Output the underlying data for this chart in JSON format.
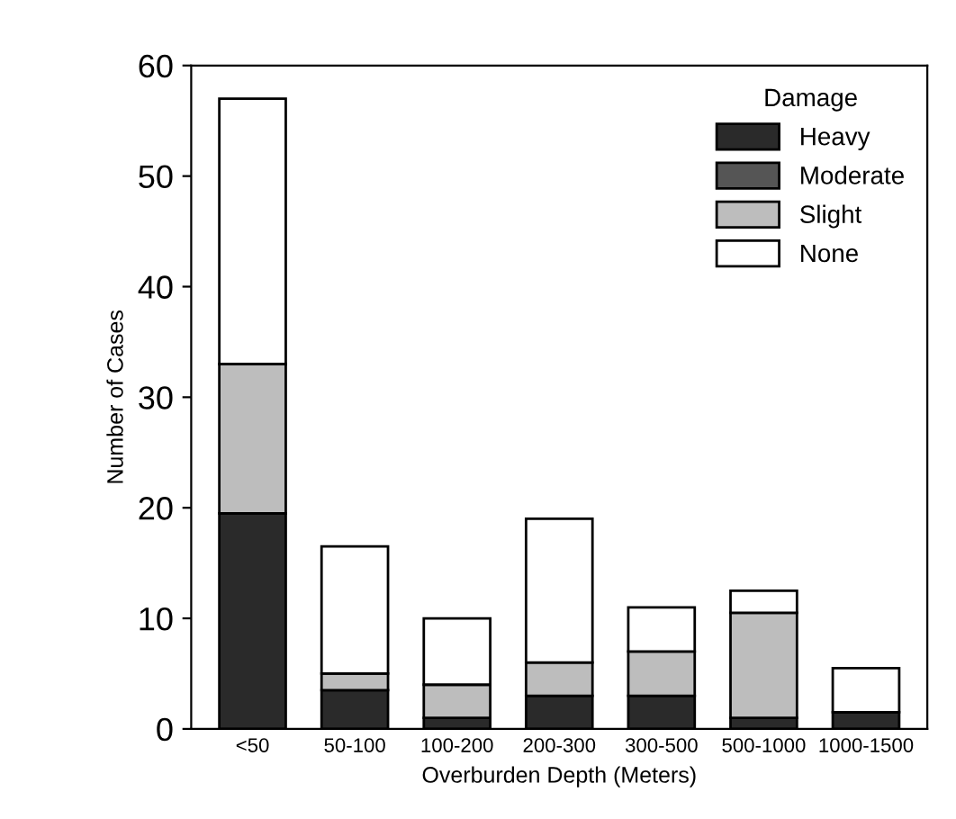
{
  "chart_data": {
    "type": "bar",
    "stacked": true,
    "xlabel": "Overburden Depth (Meters)",
    "ylabel": "Number of Cases",
    "legend_title": "Damage",
    "legend": "top right",
    "categories": [
      "<50",
      "50-100",
      "100-200",
      "200-300",
      "300-500",
      "500-1000",
      "1000-1500"
    ],
    "series": [
      {
        "name": "Heavy",
        "color": "#2a2a2a",
        "values": [
          19.5,
          3.5,
          1,
          3,
          3,
          1,
          1.5
        ]
      },
      {
        "name": "Moderate",
        "color": "#555555",
        "values": [
          0,
          0,
          0,
          0,
          0,
          0,
          0
        ]
      },
      {
        "name": "Slight",
        "color": "#bdbdbd",
        "values": [
          13.5,
          1.5,
          3,
          3,
          4,
          9.5,
          0
        ]
      },
      {
        "name": "None",
        "color": "#ffffff",
        "values": [
          24,
          11.5,
          6,
          13,
          4,
          2,
          4
        ]
      }
    ],
    "ylim": [
      0,
      60
    ],
    "yticks": [
      0,
      10,
      20,
      30,
      40,
      50,
      60
    ],
    "grid": false
  }
}
